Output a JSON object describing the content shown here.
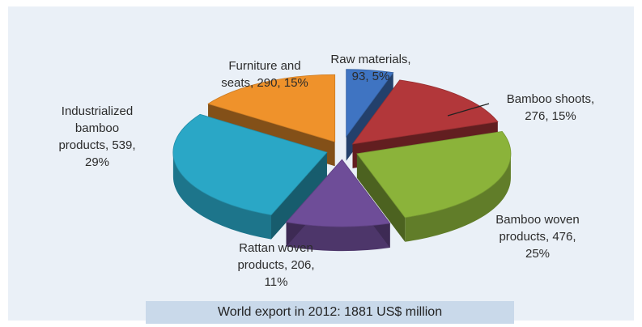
{
  "chart_data": {
    "type": "pie",
    "title": "",
    "slices": [
      {
        "label": "Raw materials",
        "value": 93,
        "percent": 5,
        "color": "#3f74c2"
      },
      {
        "label": "Bamboo shoots",
        "value": 276,
        "percent": 15,
        "color": "#b2373a"
      },
      {
        "label": "Bamboo woven products",
        "value": 476,
        "percent": 25,
        "color": "#8bb33a"
      },
      {
        "label": "Rattan woven products",
        "value": 206,
        "percent": 11,
        "color": "#6e4d98"
      },
      {
        "label": "Industrialized bamboo products",
        "value": 539,
        "percent": 29,
        "color": "#2aa7c6"
      },
      {
        "label": "Furniture and seats",
        "value": 290,
        "percent": 15,
        "color": "#ef922b"
      }
    ],
    "data_labels": [
      [
        "Raw materials,",
        "93, 5%"
      ],
      [
        "Bamboo shoots,",
        "276, 15%"
      ],
      [
        "Bamboo woven",
        "products, 476,",
        "25%"
      ],
      [
        "Rattan woven",
        "products, 206,",
        "11%"
      ],
      [
        "Industrialized",
        "bamboo",
        "products, 539,",
        "29%"
      ],
      [
        "Furniture and",
        "seats, 290, 15%"
      ]
    ]
  },
  "caption": "World export in 2012: 1881 US$ million"
}
